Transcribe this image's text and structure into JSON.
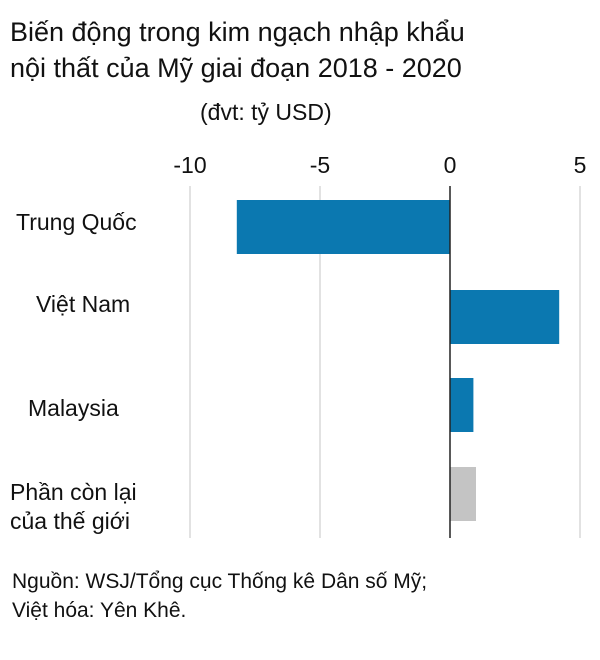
{
  "title_lines": [
    "Biến động trong kim ngạch nhập khẩu",
    "nội thất của Mỹ giai đoạn 2018 - 2020"
  ],
  "unit": "(đvt: tỷ USD)",
  "source_lines": [
    "Nguồn: WSJ/Tổng cục Thống kê Dân số Mỹ;",
    "Việt hóa: Yên Khê."
  ],
  "colors": {
    "primary": "#0b78b0",
    "rest": "#c4c4c4",
    "grid": "#d9d9d9",
    "zero_line": "#222222"
  },
  "chart_data": {
    "type": "bar",
    "orientation": "horizontal",
    "title": "Biến động trong kim ngạch nhập khẩu nội thất của Mỹ giai đoạn 2018 - 2020",
    "xlabel": "",
    "ylabel": "",
    "unit": "(đvt: tỷ USD)",
    "axis_position": "top",
    "xlim": [
      -10,
      5
    ],
    "xticks": [
      -10,
      -5,
      0,
      5
    ],
    "xtick_labels": [
      "-10",
      "-5",
      "0",
      "5"
    ],
    "grid": true,
    "legend": "none",
    "categories": [
      {
        "lines": [
          "Trung Quốc"
        ],
        "value": -8.2,
        "color": "#0b78b0"
      },
      {
        "lines": [
          "Việt Nam"
        ],
        "value": 4.2,
        "color": "#0b78b0"
      },
      {
        "lines": [
          "Malaysia"
        ],
        "value": 0.9,
        "color": "#0b78b0"
      },
      {
        "lines": [
          "Phần còn lại",
          "của thế giới"
        ],
        "value": 1.0,
        "color": "#c4c4c4"
      }
    ]
  }
}
